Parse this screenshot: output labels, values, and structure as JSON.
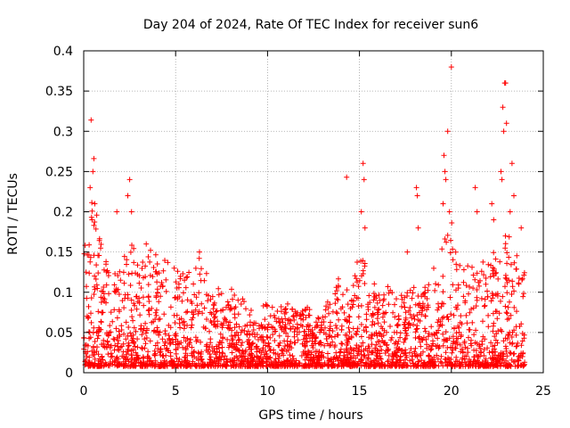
{
  "chart_data": {
    "type": "scatter",
    "title": "Day 204 of 2024, Rate Of TEC Index for receiver sun6",
    "xlabel": "GPS time / hours",
    "ylabel": "ROTI / TECUs",
    "xlim": [
      0,
      25
    ],
    "ylim": [
      0,
      0.4
    ],
    "xticks": [
      0,
      5,
      10,
      15,
      20,
      25
    ],
    "yticks": [
      0,
      0.05,
      0.1,
      0.15,
      0.2,
      0.25,
      0.3,
      0.35,
      0.4
    ],
    "xtick_labels": [
      "0",
      "5",
      "10",
      "15",
      "20",
      "25"
    ],
    "ytick_labels": [
      "0",
      "0.05",
      "0.1",
      "0.15",
      "0.2",
      "0.25",
      "0.3",
      "0.35",
      "0.4"
    ],
    "grid": true,
    "marker": "+",
    "color": "#ff0000",
    "x_data_range": [
      0,
      24
    ],
    "envelope": [
      [
        0.0,
        0.15
      ],
      [
        0.5,
        0.22
      ],
      [
        1.0,
        0.15
      ],
      [
        1.5,
        0.12
      ],
      [
        2.0,
        0.12
      ],
      [
        2.5,
        0.18
      ],
      [
        3.0,
        0.12
      ],
      [
        3.5,
        0.15
      ],
      [
        4.0,
        0.14
      ],
      [
        4.5,
        0.14
      ],
      [
        5.0,
        0.12
      ],
      [
        5.5,
        0.12
      ],
      [
        6.0,
        0.14
      ],
      [
        6.5,
        0.14
      ],
      [
        7.0,
        0.09
      ],
      [
        7.5,
        0.1
      ],
      [
        8.0,
        0.1
      ],
      [
        8.5,
        0.09
      ],
      [
        9.0,
        0.07
      ],
      [
        9.5,
        0.07
      ],
      [
        10.0,
        0.08
      ],
      [
        10.5,
        0.08
      ],
      [
        11.0,
        0.08
      ],
      [
        11.5,
        0.07
      ],
      [
        12.0,
        0.07
      ],
      [
        12.5,
        0.08
      ],
      [
        13.0,
        0.07
      ],
      [
        13.5,
        0.09
      ],
      [
        14.0,
        0.12
      ],
      [
        14.5,
        0.1
      ],
      [
        15.0,
        0.14
      ],
      [
        15.5,
        0.12
      ],
      [
        16.0,
        0.1
      ],
      [
        16.5,
        0.1
      ],
      [
        17.0,
        0.09
      ],
      [
        17.5,
        0.09
      ],
      [
        18.0,
        0.1
      ],
      [
        18.5,
        0.1
      ],
      [
        19.0,
        0.12
      ],
      [
        19.5,
        0.15
      ],
      [
        20.0,
        0.18
      ],
      [
        20.5,
        0.13
      ],
      [
        21.0,
        0.13
      ],
      [
        21.5,
        0.14
      ],
      [
        22.0,
        0.15
      ],
      [
        22.5,
        0.14
      ],
      [
        23.0,
        0.17
      ],
      [
        23.5,
        0.14
      ],
      [
        24.0,
        0.12
      ]
    ],
    "peaks": [
      [
        0.4,
        0.314
      ],
      [
        0.55,
        0.266
      ],
      [
        0.5,
        0.25
      ],
      [
        0.35,
        0.23
      ],
      [
        0.6,
        0.21
      ],
      [
        0.45,
        0.19
      ],
      [
        2.5,
        0.24
      ],
      [
        2.4,
        0.22
      ],
      [
        2.6,
        0.2
      ],
      [
        1.8,
        0.2
      ],
      [
        3.4,
        0.16
      ],
      [
        6.3,
        0.15
      ],
      [
        14.3,
        0.243
      ],
      [
        15.2,
        0.26
      ],
      [
        15.25,
        0.24
      ],
      [
        15.1,
        0.2
      ],
      [
        15.3,
        0.18
      ],
      [
        17.6,
        0.15
      ],
      [
        18.1,
        0.23
      ],
      [
        18.15,
        0.22
      ],
      [
        18.2,
        0.18
      ],
      [
        19.6,
        0.27
      ],
      [
        19.65,
        0.25
      ],
      [
        19.8,
        0.3
      ],
      [
        19.7,
        0.24
      ],
      [
        19.55,
        0.21
      ],
      [
        19.9,
        0.2
      ],
      [
        20.0,
        0.38
      ],
      [
        21.3,
        0.23
      ],
      [
        21.4,
        0.2
      ],
      [
        22.2,
        0.21
      ],
      [
        22.3,
        0.19
      ],
      [
        22.8,
        0.33
      ],
      [
        22.85,
        0.3
      ],
      [
        22.9,
        0.36
      ],
      [
        22.95,
        0.36
      ],
      [
        23.0,
        0.31
      ],
      [
        22.7,
        0.25
      ],
      [
        22.75,
        0.24
      ],
      [
        23.3,
        0.26
      ],
      [
        23.4,
        0.22
      ],
      [
        23.2,
        0.2
      ],
      [
        23.8,
        0.18
      ]
    ]
  }
}
